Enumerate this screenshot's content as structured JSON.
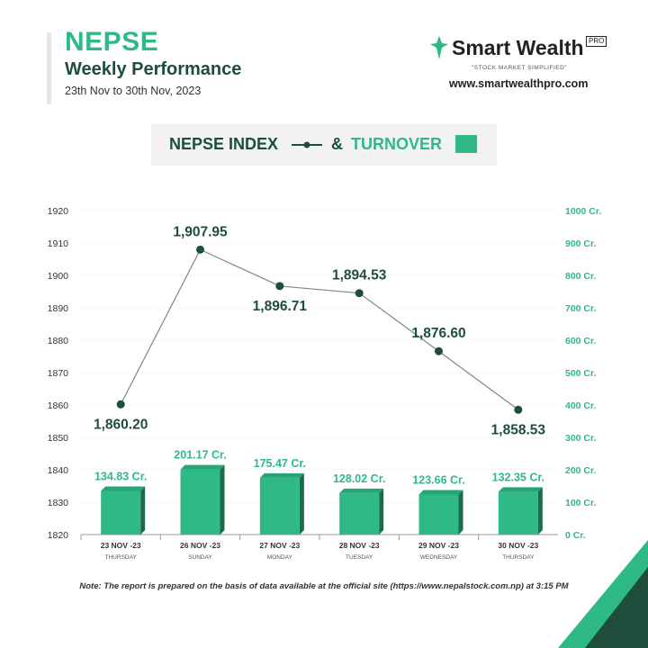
{
  "header": {
    "title": "NEPSE",
    "subtitle": "Weekly Performance",
    "date_range": "23th  Nov to 30th Nov, 2023"
  },
  "brand": {
    "name": "Smart Wealth",
    "pro": "PRO",
    "tagline": "\"STOCK MARKET SIMPLIFIED\"",
    "url": "www.smartwealthpro.com"
  },
  "legend": {
    "index_label": "NEPSE INDEX",
    "amp": "&",
    "turnover_label": "TURNOVER"
  },
  "colors": {
    "line": "#1e4d3c",
    "bar": "#2fb984",
    "bar_side": "#1e6b4a",
    "accent": "#2fb984",
    "right_axis": "#2fb984"
  },
  "chart_data": {
    "type": "bar+line",
    "categories": [
      "23 NOV -23",
      "26 NOV -23",
      "27 NOV -23",
      "28 NOV -23",
      "29 NOV -23",
      "30 NOV -23"
    ],
    "days": [
      "THURSDAY",
      "SUNDAY",
      "MONDAY",
      "TUESDAY",
      "WEDNESDAY",
      "THURSDAY"
    ],
    "series": [
      {
        "name": "NEPSE INDEX",
        "type": "line",
        "axis": "left",
        "values": [
          1860.2,
          1907.95,
          1896.71,
          1894.53,
          1876.6,
          1858.53
        ],
        "labels": [
          "1,860.20",
          "1,907.95",
          "1,896.71",
          "1,894.53",
          "1,876.60",
          "1,858.53"
        ]
      },
      {
        "name": "TURNOVER",
        "type": "bar",
        "axis": "right",
        "values": [
          134.83,
          201.17,
          175.47,
          128.02,
          123.66,
          132.35
        ],
        "labels": [
          "134.83 Cr.",
          "201.17 Cr.",
          "175.47 Cr.",
          "128.02 Cr.",
          "123.66 Cr.",
          "132.35 Cr."
        ]
      }
    ],
    "left_axis": {
      "ylim": [
        1820,
        1920
      ],
      "ticks": [
        "1820",
        "1830",
        "1840",
        "1850",
        "1860",
        "1870",
        "1880",
        "1890",
        "1900",
        "1910",
        "1920"
      ]
    },
    "right_axis": {
      "ylim": [
        0,
        1000
      ],
      "ticks": [
        "0 Cr.",
        "100 Cr.",
        "200 Cr.",
        "300 Cr.",
        "400 Cr.",
        "500 Cr.",
        "600 Cr.",
        "700 Cr.",
        "800 Cr.",
        "900 Cr.",
        "1000 Cr."
      ]
    },
    "grid": true
  },
  "note": "Note: The report is prepared on the basis of data available at the official site (https://www.nepalstock.com.np) at 3:15 PM"
}
